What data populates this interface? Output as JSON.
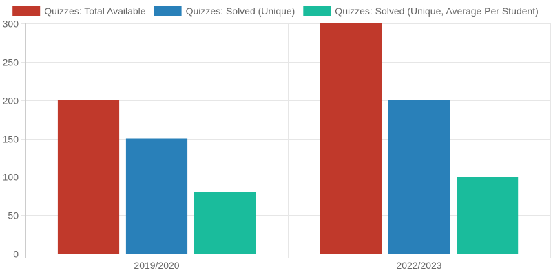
{
  "chart_data": {
    "type": "bar",
    "categories": [
      "2019/2020",
      "2022/2023"
    ],
    "series": [
      {
        "name": "Quizzes: Total Available",
        "values": [
          200,
          300
        ],
        "color": "#c0392b"
      },
      {
        "name": "Quizzes: Solved (Unique)",
        "values": [
          150,
          200
        ],
        "color": "#2980b9"
      },
      {
        "name": "Quizzes: Solved (Unique, Average Per Student)",
        "values": [
          80,
          100
        ],
        "color": "#1abc9c"
      }
    ],
    "ylim": [
      0,
      300
    ],
    "yticks": [
      0,
      50,
      100,
      150,
      200,
      250,
      300
    ],
    "grid": true,
    "legend": "top"
  }
}
